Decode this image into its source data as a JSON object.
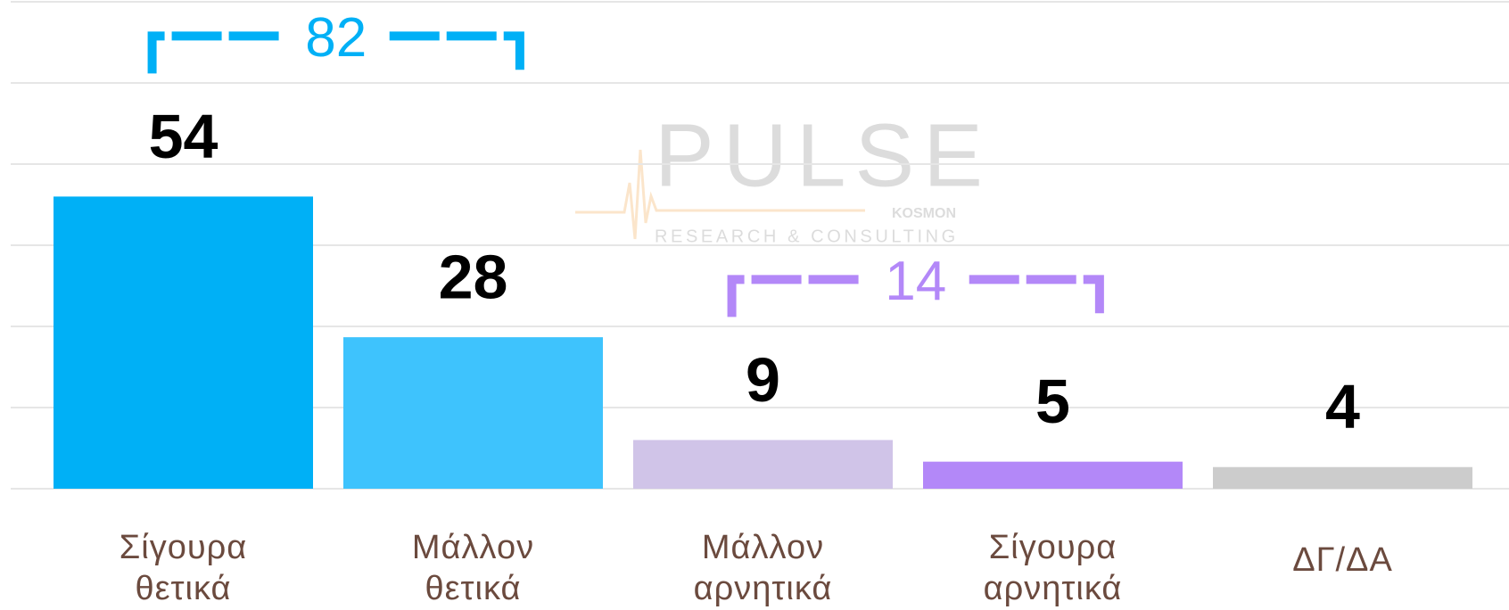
{
  "chart_data": {
    "type": "bar",
    "categories": [
      [
        "Σίγουρα",
        "θετικά"
      ],
      [
        "Μάλλον",
        "θετικά"
      ],
      [
        "Μάλλον",
        "αρνητικά"
      ],
      [
        "Σίγουρα",
        "αρνητικά"
      ],
      [
        "ΔΓ/ΔΑ"
      ]
    ],
    "values": [
      54,
      28,
      9,
      5,
      4
    ],
    "colors": [
      "#00b0f6",
      "#3ec3fd",
      "#d0c4e8",
      "#b388f8",
      "#cccccc"
    ],
    "ylim": [
      0,
      90
    ],
    "yticks": [
      0,
      15,
      30,
      45,
      60,
      75,
      90
    ],
    "grid": true,
    "brackets": [
      {
        "value": 82,
        "from": 0,
        "to": 1,
        "color": "#00b0f6"
      },
      {
        "value": 14,
        "from": 2,
        "to": 3,
        "color": "#b388f8"
      }
    ],
    "watermark": {
      "name": "PULSE",
      "brand": "KOSMON",
      "tagline": "RESEARCH & CONSULTING"
    }
  }
}
